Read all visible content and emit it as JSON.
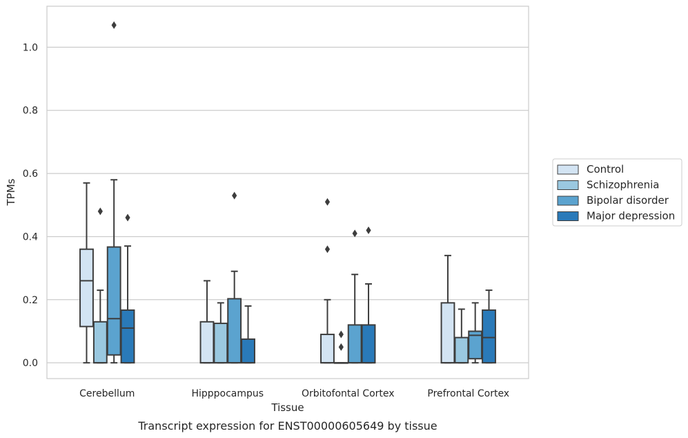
{
  "chart_data": {
    "type": "box",
    "xlabel": "Tissue",
    "ylabel": "TPMs",
    "caption": "Transcript expression for ENST00000605649 by tissue",
    "ylim": [
      -0.05,
      1.13
    ],
    "yticks": [
      0.0,
      0.2,
      0.4,
      0.6,
      0.8,
      1.0
    ],
    "ytick_labels": [
      "0.0",
      "0.2",
      "0.4",
      "0.6",
      "0.8",
      "1.0"
    ],
    "grid": "horizontal",
    "legend_position": "right",
    "categories": [
      "Cerebellum",
      "Hipppocampus",
      "Orbitofontal Cortex",
      "Prefrontal Cortex"
    ],
    "series": [
      {
        "name": "Control",
        "color": "#d3e4f3",
        "boxes": [
          {
            "whisker_low": 0.0,
            "q1": 0.115,
            "median": 0.26,
            "q3": 0.36,
            "whisker_high": 0.57,
            "outliers": []
          },
          {
            "whisker_low": 0.0,
            "q1": 0.0,
            "median": 0.0,
            "q3": 0.13,
            "whisker_high": 0.26,
            "outliers": []
          },
          {
            "whisker_low": 0.0,
            "q1": 0.0,
            "median": 0.0,
            "q3": 0.09,
            "whisker_high": 0.2,
            "outliers": [
              0.36,
              0.51
            ]
          },
          {
            "whisker_low": 0.0,
            "q1": 0.0,
            "median": 0.0,
            "q3": 0.19,
            "whisker_high": 0.34,
            "outliers": []
          }
        ]
      },
      {
        "name": "Schizophrenia",
        "color": "#9ac8e0",
        "boxes": [
          {
            "whisker_low": 0.0,
            "q1": 0.0,
            "median": 0.0,
            "q3": 0.13,
            "whisker_high": 0.23,
            "outliers": [
              0.48
            ]
          },
          {
            "whisker_low": 0.0,
            "q1": 0.0,
            "median": 0.0,
            "q3": 0.125,
            "whisker_high": 0.19,
            "outliers": []
          },
          {
            "whisker_low": 0.0,
            "q1": 0.0,
            "median": 0.0,
            "q3": 0.0,
            "whisker_high": 0.0,
            "outliers": [
              0.05,
              0.09
            ]
          },
          {
            "whisker_low": 0.0,
            "q1": 0.0,
            "median": 0.0,
            "q3": 0.08,
            "whisker_high": 0.17,
            "outliers": []
          }
        ]
      },
      {
        "name": "Bipolar disorder",
        "color": "#5ba3cf",
        "boxes": [
          {
            "whisker_low": 0.0,
            "q1": 0.025,
            "median": 0.14,
            "q3": 0.367,
            "whisker_high": 0.58,
            "outliers": [
              1.07
            ]
          },
          {
            "whisker_low": 0.0,
            "q1": 0.0,
            "median": 0.0,
            "q3": 0.203,
            "whisker_high": 0.29,
            "outliers": [
              0.53
            ]
          },
          {
            "whisker_low": 0.0,
            "q1": 0.0,
            "median": 0.0,
            "q3": 0.12,
            "whisker_high": 0.28,
            "outliers": [
              0.41
            ]
          },
          {
            "whisker_low": 0.0,
            "q1": 0.013,
            "median": 0.087,
            "q3": 0.1,
            "whisker_high": 0.19,
            "outliers": []
          }
        ]
      },
      {
        "name": "Major depression",
        "color": "#2a7ab9",
        "boxes": [
          {
            "whisker_low": 0.0,
            "q1": 0.0,
            "median": 0.11,
            "q3": 0.167,
            "whisker_high": 0.37,
            "outliers": [
              0.46
            ]
          },
          {
            "whisker_low": 0.0,
            "q1": 0.0,
            "median": 0.0,
            "q3": 0.075,
            "whisker_high": 0.18,
            "outliers": []
          },
          {
            "whisker_low": 0.0,
            "q1": 0.0,
            "median": 0.0,
            "q3": 0.12,
            "whisker_high": 0.25,
            "outliers": [
              0.42
            ]
          },
          {
            "whisker_low": 0.0,
            "q1": 0.0,
            "median": 0.08,
            "q3": 0.167,
            "whisker_high": 0.23,
            "outliers": []
          }
        ]
      }
    ]
  }
}
